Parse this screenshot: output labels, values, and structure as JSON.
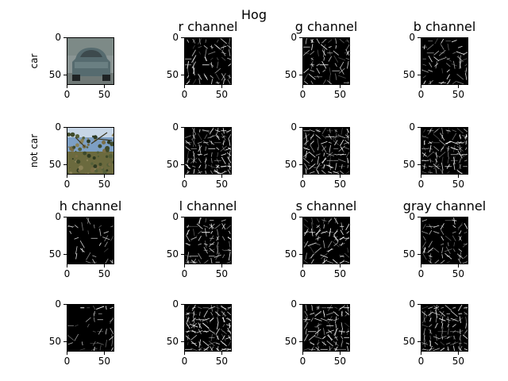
{
  "suptitle": "Hog",
  "row_labels": [
    "car",
    "not car"
  ],
  "titles": {
    "r": "r channel",
    "g": "g channel",
    "b": "b channel",
    "h": "h channel",
    "l": "l channel",
    "s": "s channel",
    "gray": "gray channel"
  },
  "ticks": {
    "x": [
      "0",
      "50"
    ],
    "y": [
      "0",
      "50"
    ]
  },
  "tick_values": {
    "x": [
      0,
      50
    ],
    "y": [
      0,
      50
    ]
  },
  "image_extent": [
    64,
    64
  ],
  "hog_grid": 8,
  "colors": {
    "hog_line": "#ffffff",
    "background": "#000000"
  },
  "panels": [
    {
      "row": 0,
      "col": 0,
      "kind": "photo-car",
      "title_key": null
    },
    {
      "row": 0,
      "col": 1,
      "kind": "hog",
      "title_key": "r",
      "density": 0.55,
      "seed": 11
    },
    {
      "row": 0,
      "col": 2,
      "kind": "hog",
      "title_key": "g",
      "density": 0.55,
      "seed": 23
    },
    {
      "row": 0,
      "col": 3,
      "kind": "hog",
      "title_key": "b",
      "density": 0.5,
      "seed": 37
    },
    {
      "row": 1,
      "col": 0,
      "kind": "photo-notcar",
      "title_key": null
    },
    {
      "row": 1,
      "col": 1,
      "kind": "hog",
      "title_key": null,
      "density": 0.95,
      "seed": 41
    },
    {
      "row": 1,
      "col": 2,
      "kind": "hog",
      "title_key": null,
      "density": 0.95,
      "seed": 53
    },
    {
      "row": 1,
      "col": 3,
      "kind": "hog",
      "title_key": null,
      "density": 0.9,
      "seed": 67
    },
    {
      "row": 2,
      "col": 0,
      "kind": "hog",
      "title_key": "h",
      "density": 0.25,
      "seed": 71
    },
    {
      "row": 2,
      "col": 1,
      "kind": "hog",
      "title_key": "l",
      "density": 0.6,
      "seed": 83
    },
    {
      "row": 2,
      "col": 2,
      "kind": "hog",
      "title_key": "s",
      "density": 0.55,
      "seed": 97
    },
    {
      "row": 2,
      "col": 3,
      "kind": "hog",
      "title_key": "gray",
      "density": 0.6,
      "seed": 101
    },
    {
      "row": 3,
      "col": 0,
      "kind": "hog",
      "title_key": null,
      "density": 0.3,
      "seed": 113
    },
    {
      "row": 3,
      "col": 1,
      "kind": "hog",
      "title_key": null,
      "density": 0.95,
      "seed": 127
    },
    {
      "row": 3,
      "col": 2,
      "kind": "hog",
      "title_key": null,
      "density": 0.9,
      "seed": 131
    },
    {
      "row": 3,
      "col": 3,
      "kind": "hog",
      "title_key": null,
      "density": 0.95,
      "seed": 139
    }
  ]
}
